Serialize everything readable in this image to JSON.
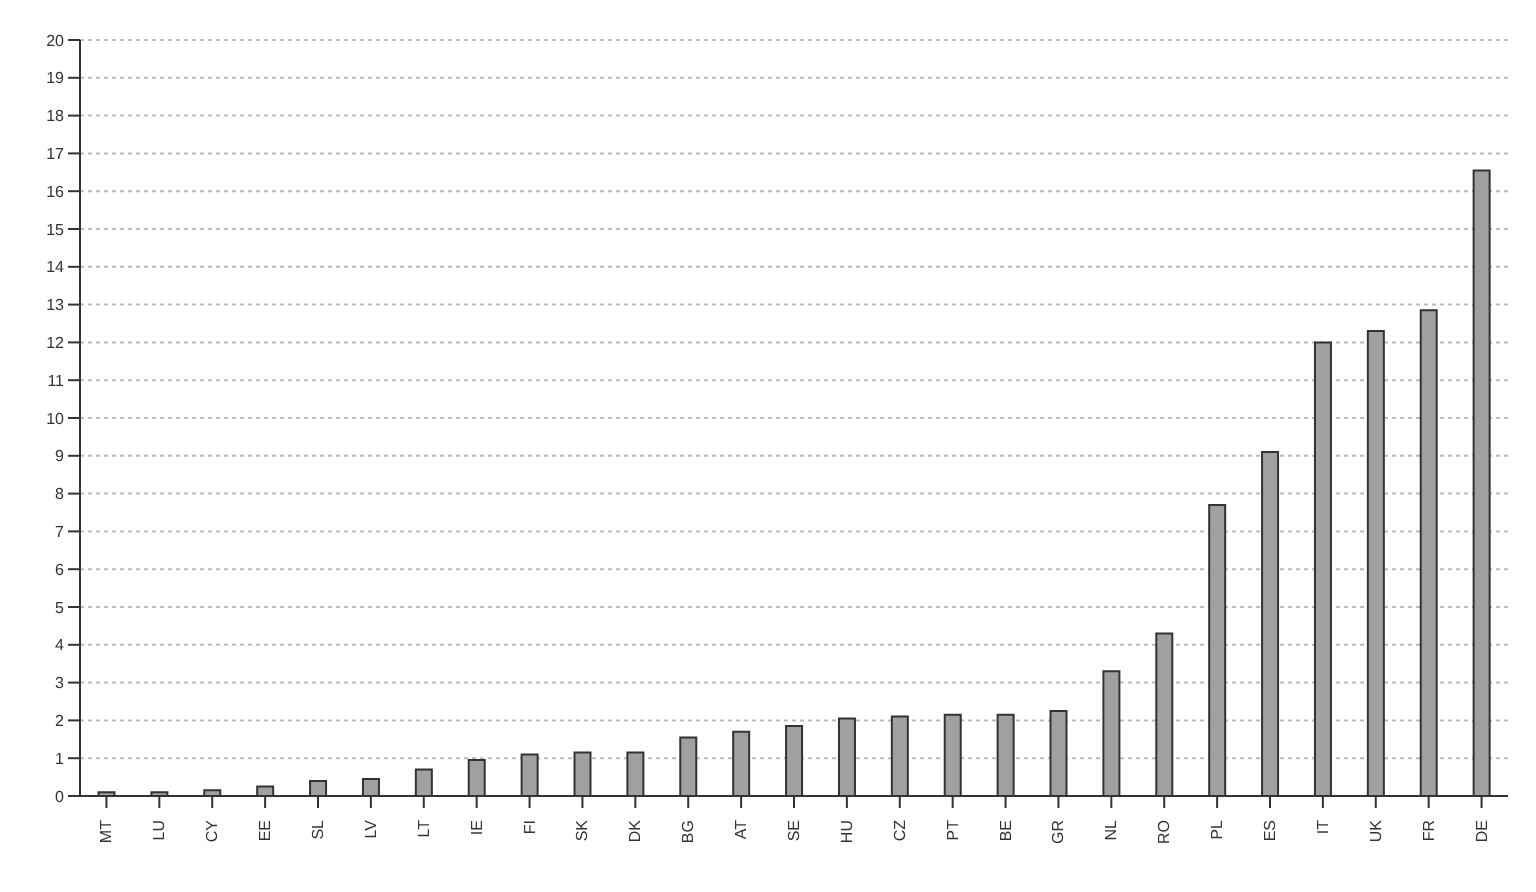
{
  "chart_data": {
    "type": "bar",
    "categories": [
      "MT",
      "LU",
      "CY",
      "EE",
      "SL",
      "LV",
      "LT",
      "IE",
      "FI",
      "SK",
      "DK",
      "BG",
      "AT",
      "SE",
      "HU",
      "CZ",
      "PT",
      "BE",
      "GR",
      "NL",
      "RO",
      "PL",
      "ES",
      "IT",
      "UK",
      "FR",
      "DE"
    ],
    "values": [
      0.1,
      0.1,
      0.15,
      0.25,
      0.4,
      0.45,
      0.7,
      0.95,
      1.1,
      1.15,
      1.15,
      1.55,
      1.7,
      1.85,
      2.05,
      2.1,
      2.15,
      2.15,
      2.25,
      3.3,
      4.3,
      7.7,
      9.1,
      12.0,
      12.3,
      12.85,
      16.55
    ],
    "color": "#a0a0a0",
    "ylim": [
      0,
      20
    ],
    "yticks": [
      0,
      1,
      2,
      3,
      4,
      5,
      6,
      7,
      8,
      9,
      10,
      11,
      12,
      13,
      14,
      15,
      16,
      17,
      18,
      19,
      20
    ],
    "grid": "y"
  }
}
